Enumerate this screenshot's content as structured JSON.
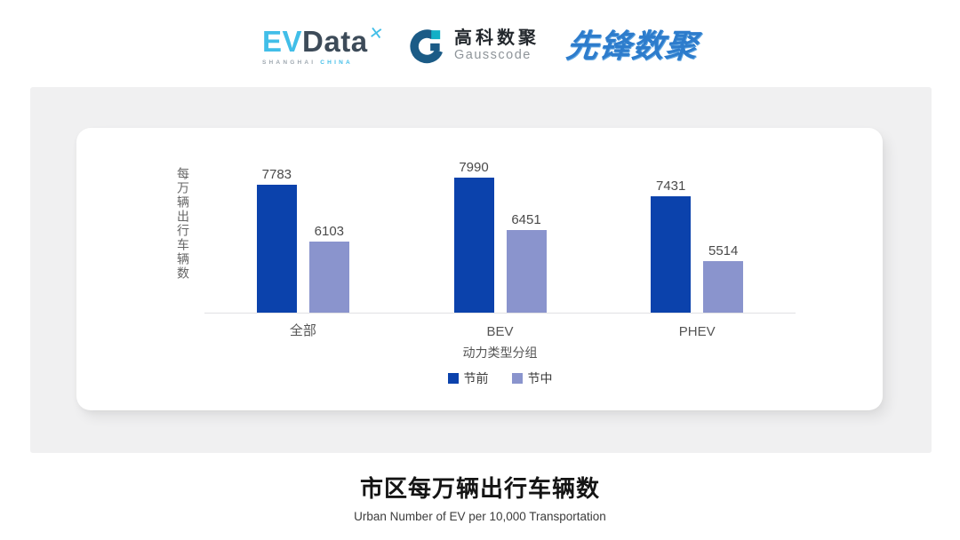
{
  "header": {
    "evdata": {
      "ev": "EV",
      "data": "Data",
      "mark": "✕",
      "sub": "SHANGHAI ",
      "sub_accent": "CHINA"
    },
    "gausscode": {
      "name_cn": "高科数聚",
      "name_en": "Gausscode"
    },
    "pioneer": {
      "name": "先锋数聚"
    }
  },
  "chart_data": {
    "type": "bar",
    "title": "市区每万辆出行车辆数",
    "subtitle": "Urban Number of EV per 10,000 Transportation",
    "xlabel": "动力类型分组",
    "ylabel": "每万辆出行车辆数",
    "categories": [
      "全部",
      "BEV",
      "PHEV"
    ],
    "series": [
      {
        "name": "节前",
        "color": "#0B42AC",
        "values": [
          7783,
          7990,
          7431
        ]
      },
      {
        "name": "节中",
        "color": "#8A94CD",
        "values": [
          6103,
          6451,
          5514
        ]
      }
    ],
    "ylim": [
      4000,
      8200
    ],
    "grid": false,
    "legend_position": "bottom",
    "value_labels": true
  },
  "colors": {
    "panel_bg": "#F0F0F1",
    "card_bg": "#FFFFFF",
    "axis_line": "#E1E1E4",
    "accent_cyan": "#41BEE8",
    "logo_dark": "#3D4B59",
    "gauss_navy": "#1B5B86",
    "gauss_teal": "#12AFC6",
    "pioneer_blue": "#2D7CCC"
  }
}
